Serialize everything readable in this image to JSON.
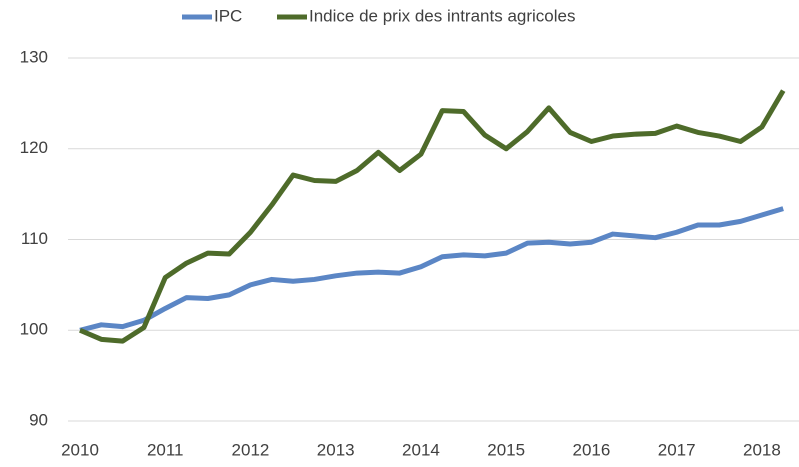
{
  "chart_data": {
    "type": "line",
    "x": [
      2010,
      2010.25,
      2010.5,
      2010.75,
      2011,
      2011.25,
      2011.5,
      2011.75,
      2012,
      2012.25,
      2012.5,
      2012.75,
      2013,
      2013.25,
      2013.5,
      2013.75,
      2014,
      2014.25,
      2014.5,
      2014.75,
      2015,
      2015.25,
      2015.5,
      2015.75,
      2016,
      2016.25,
      2016.5,
      2016.75,
      2017,
      2017.25,
      2017.5,
      2017.75,
      2018,
      2018.25
    ],
    "series": [
      {
        "name": "IPC",
        "color": "#5b86c5",
        "values": [
          100,
          100.6,
          100.4,
          101.1,
          102.4,
          103.6,
          103.5,
          103.9,
          105.0,
          105.6,
          105.4,
          105.6,
          106.0,
          106.3,
          106.4,
          106.3,
          107.0,
          108.1,
          108.3,
          108.2,
          108.5,
          109.6,
          109.7,
          109.5,
          109.7,
          110.6,
          110.4,
          110.2,
          110.8,
          111.6,
          111.6,
          112.0,
          112.7,
          113.4
        ]
      },
      {
        "name": "Indice de prix des intrants agricoles",
        "color": "#4e6b2a",
        "values": [
          100,
          99.0,
          98.8,
          100.3,
          105.8,
          107.4,
          108.5,
          108.4,
          110.8,
          113.8,
          117.1,
          116.5,
          116.4,
          117.6,
          119.6,
          117.6,
          119.4,
          124.2,
          124.1,
          121.5,
          120.0,
          121.9,
          124.5,
          121.8,
          120.8,
          121.4,
          121.6,
          121.7,
          122.5,
          121.8,
          121.4,
          120.8,
          122.4,
          126.4
        ]
      }
    ],
    "xlim": [
      2010,
      2018.4
    ],
    "xticks": [
      2010,
      2011,
      2012,
      2013,
      2014,
      2015,
      2016,
      2017,
      2018
    ],
    "ylim": [
      90,
      130
    ],
    "yticks": [
      90,
      100,
      110,
      120,
      130
    ],
    "grid": true,
    "legend": "top"
  }
}
